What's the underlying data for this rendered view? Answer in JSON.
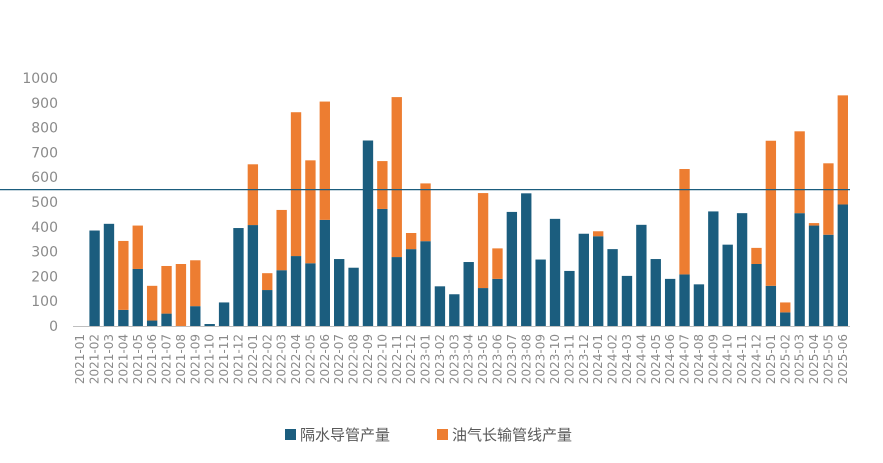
{
  "chart_data": {
    "type": "bar",
    "stacked": true,
    "categories": [
      "2021-01",
      "2021-02",
      "2021-03",
      "2021-04",
      "2021-05",
      "2021-06",
      "2021-07",
      "2021-08",
      "2021-09",
      "2021-10",
      "2021-11",
      "2021-12",
      "2022-01",
      "2022-02",
      "2022-03",
      "2022-04",
      "2022-05",
      "2022-06",
      "2022-07",
      "2022-08",
      "2022-09",
      "2022-10",
      "2022-11",
      "2022-12",
      "2023-01",
      "2023-02",
      "2023-03",
      "2023-04",
      "2023-05",
      "2023-06",
      "2023-07",
      "2023-08",
      "2023-09",
      "2023-10",
      "2023-11",
      "2023-12",
      "2024-01",
      "2024-02",
      "2024-03",
      "2024-04",
      "2024-05",
      "2024-06",
      "2024-07",
      "2024-08",
      "2024-09",
      "2024-10",
      "2024-11",
      "2024-12",
      "2025-01",
      "2025-02",
      "2025-03",
      "2025-04",
      "2025-05",
      "2025-06"
    ],
    "series": [
      {
        "name": "隔水导管产量",
        "color": "#1b5d7e",
        "values": [
          0,
          385,
          412,
          65,
          230,
          22,
          50,
          0,
          80,
          8,
          95,
          395,
          407,
          145,
          225,
          282,
          253,
          428,
          270,
          235,
          748,
          472,
          278,
          310,
          342,
          160,
          128,
          258,
          153,
          190,
          460,
          535,
          268,
          432,
          222,
          372,
          362,
          310,
          202,
          408,
          270,
          190,
          208,
          168,
          462,
          328,
          455,
          250,
          162,
          55,
          455,
          405,
          368,
          490
        ]
      },
      {
        "name": "油气长输管线产量",
        "color": "#ed7d31",
        "values": [
          0,
          0,
          0,
          278,
          175,
          140,
          192,
          250,
          185,
          0,
          0,
          0,
          245,
          68,
          243,
          580,
          415,
          477,
          0,
          0,
          0,
          193,
          645,
          65,
          233,
          0,
          0,
          0,
          383,
          123,
          0,
          0,
          0,
          0,
          0,
          0,
          20,
          0,
          0,
          0,
          0,
          0,
          425,
          0,
          0,
          0,
          0,
          65,
          585,
          40,
          330,
          10,
          288,
          440
        ]
      }
    ],
    "reference_line": 550,
    "ylim": [
      0,
      1000
    ],
    "yticks": [
      0,
      100,
      200,
      300,
      400,
      500,
      600,
      700,
      800,
      900,
      1000
    ],
    "legend": "bottom",
    "grid": false
  }
}
